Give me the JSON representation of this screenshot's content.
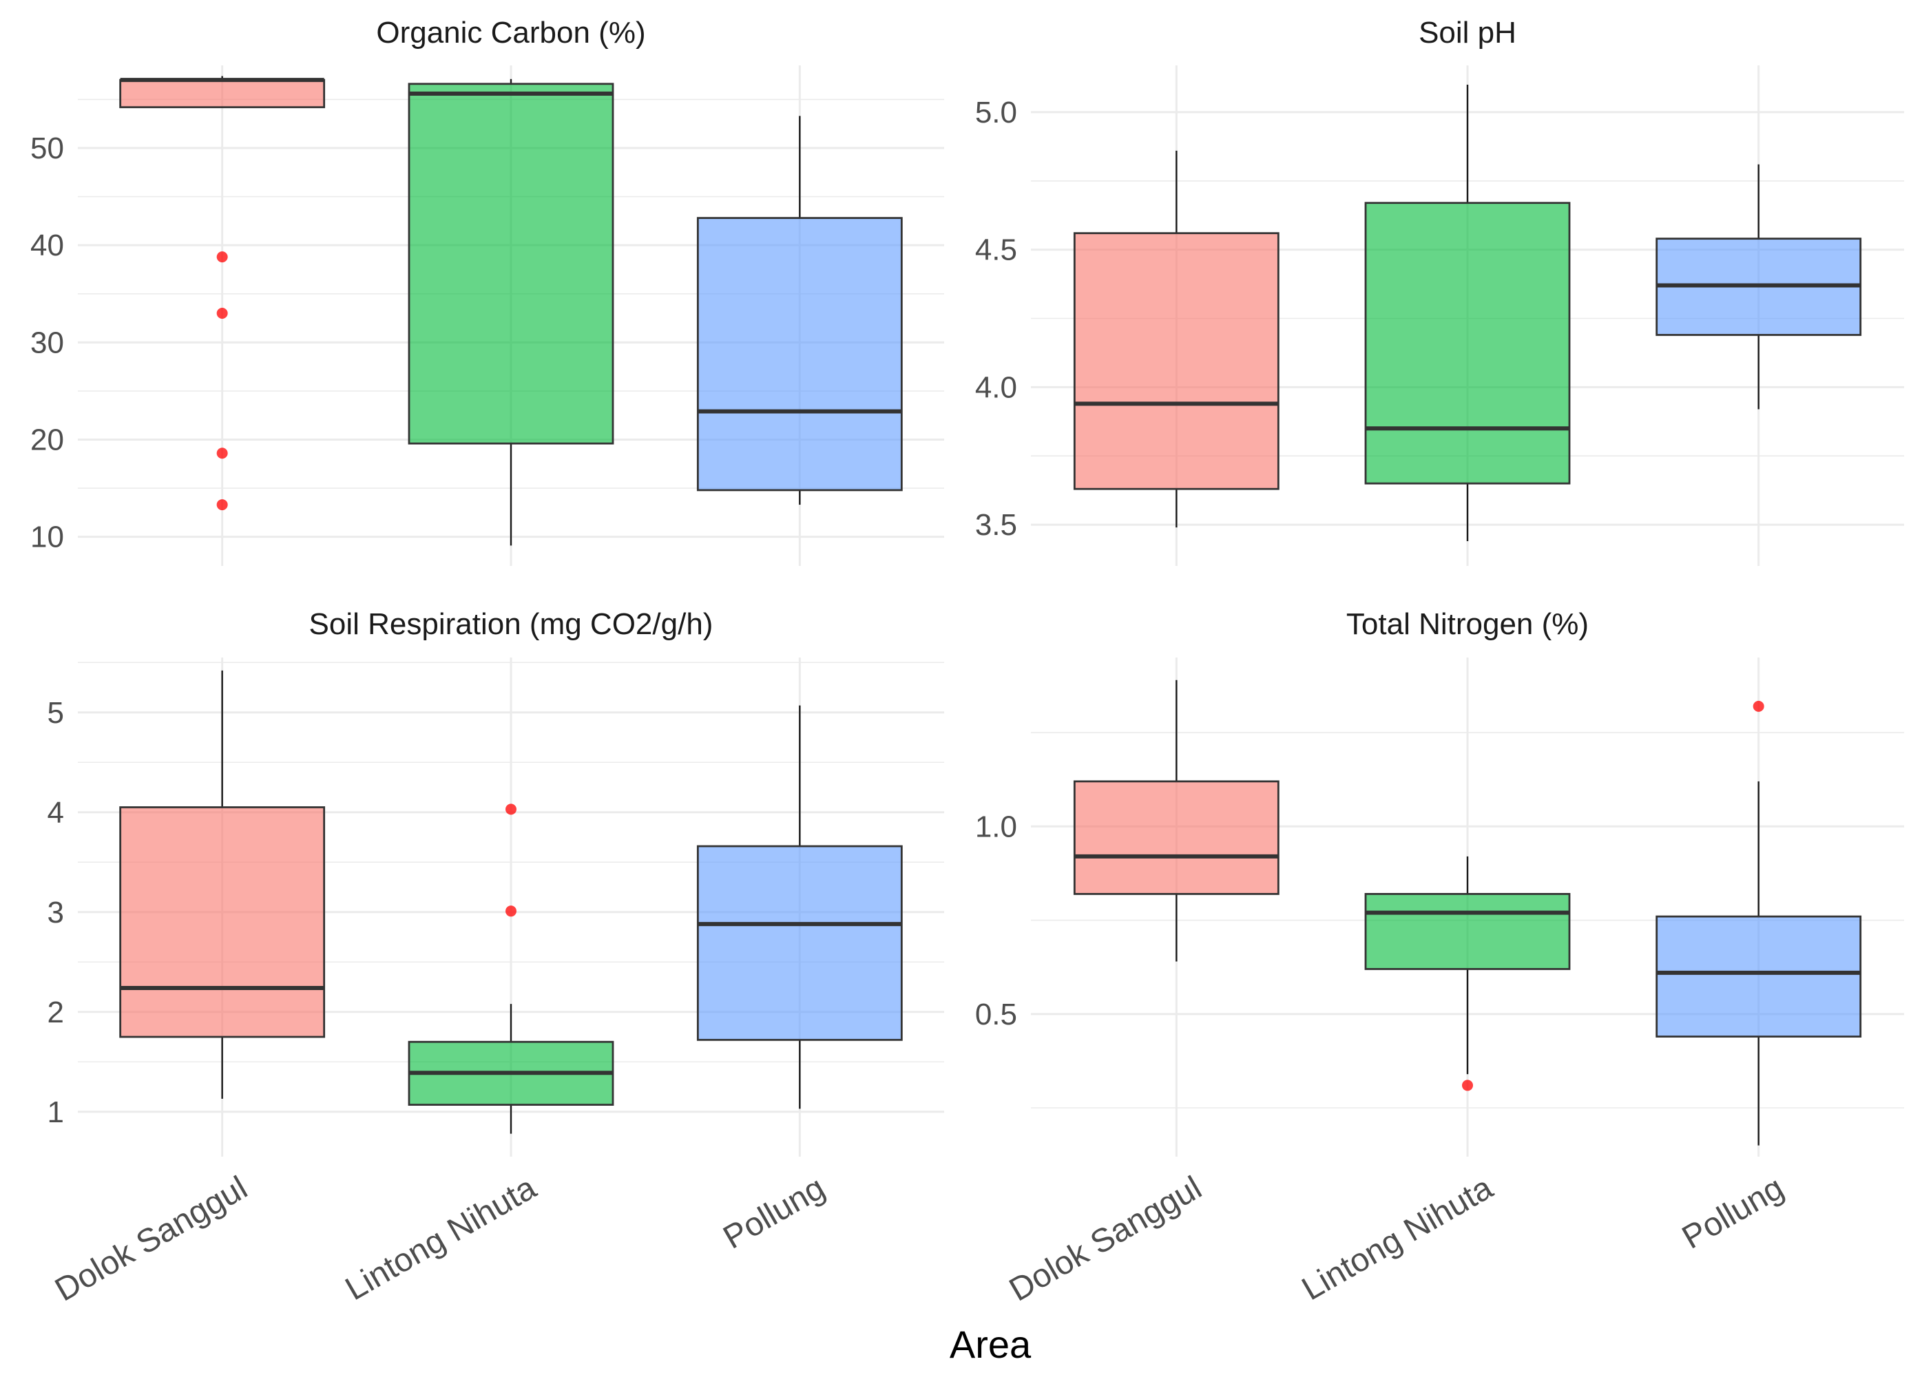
{
  "x_axis_title": "Area",
  "categories": [
    "Dolok Sanggul",
    "Lintong Nihuta",
    "Pollung"
  ],
  "colors": {
    "Dolok Sanggul": "#F8766D",
    "Lintong Nihuta": "#00BA38",
    "Pollung": "#619CFF",
    "outlier": "#FF0000"
  },
  "chart_data": [
    {
      "type": "box",
      "title": "Organic Carbon (%)",
      "ylim": [
        7,
        58.5
      ],
      "yticks": [
        10,
        20,
        30,
        40,
        50
      ],
      "ytick_labels": [
        "10",
        "20",
        "30",
        "40",
        "50"
      ],
      "yminor": [
        15,
        25,
        35,
        45,
        55
      ],
      "show_x_labels": false,
      "boxes": [
        {
          "category": "Dolok Sanggul",
          "whisker_low": 54.2,
          "q1": 54.2,
          "median": 57.0,
          "q3": 57.0,
          "whisker_high": 57.4,
          "outliers": [
            38.8,
            33.0,
            18.6,
            13.3
          ]
        },
        {
          "category": "Lintong Nihuta",
          "whisker_low": 9.1,
          "q1": 19.6,
          "median": 55.6,
          "q3": 56.6,
          "whisker_high": 57.1,
          "outliers": []
        },
        {
          "category": "Pollung",
          "whisker_low": 13.3,
          "q1": 14.8,
          "median": 22.9,
          "q3": 42.8,
          "whisker_high": 53.3,
          "outliers": []
        }
      ]
    },
    {
      "type": "box",
      "title": "Soil pH",
      "ylim": [
        3.35,
        5.17
      ],
      "yticks": [
        3.5,
        4.0,
        4.5,
        5.0
      ],
      "ytick_labels": [
        "3.5",
        "4.0",
        "4.5",
        "5.0"
      ],
      "yminor": [
        3.75,
        4.25,
        4.75
      ],
      "show_x_labels": false,
      "boxes": [
        {
          "category": "Dolok Sanggul",
          "whisker_low": 3.49,
          "q1": 3.63,
          "median": 3.94,
          "q3": 4.56,
          "whisker_high": 4.86,
          "outliers": []
        },
        {
          "category": "Lintong Nihuta",
          "whisker_low": 3.44,
          "q1": 3.65,
          "median": 3.85,
          "q3": 4.67,
          "whisker_high": 5.1,
          "outliers": []
        },
        {
          "category": "Pollung",
          "whisker_low": 3.92,
          "q1": 4.19,
          "median": 4.37,
          "q3": 4.54,
          "whisker_high": 4.81,
          "outliers": []
        }
      ]
    },
    {
      "type": "box",
      "title": "Soil Respiration (mg CO2/g/h)",
      "ylim": [
        0.55,
        5.55
      ],
      "yticks": [
        1,
        2,
        3,
        4,
        5
      ],
      "ytick_labels": [
        "1",
        "2",
        "3",
        "4",
        "5"
      ],
      "yminor": [
        1.5,
        2.5,
        3.5,
        4.5,
        5.5
      ],
      "show_x_labels": true,
      "boxes": [
        {
          "category": "Dolok Sanggul",
          "whisker_low": 1.13,
          "q1": 1.75,
          "median": 2.24,
          "q3": 4.05,
          "whisker_high": 5.42,
          "outliers": []
        },
        {
          "category": "Lintong Nihuta",
          "whisker_low": 0.78,
          "q1": 1.07,
          "median": 1.39,
          "q3": 1.7,
          "whisker_high": 2.08,
          "outliers": [
            4.03,
            3.01
          ]
        },
        {
          "category": "Pollung",
          "whisker_low": 1.03,
          "q1": 1.72,
          "median": 2.88,
          "q3": 3.66,
          "whisker_high": 5.07,
          "outliers": []
        }
      ]
    },
    {
      "type": "box",
      "title": "Total Nitrogen (%)",
      "ylim": [
        0.12,
        1.45
      ],
      "yticks": [
        0.5,
        1.0
      ],
      "ytick_labels": [
        "0.5",
        "1.0"
      ],
      "yminor": [
        0.25,
        0.75,
        1.25
      ],
      "show_x_labels": true,
      "boxes": [
        {
          "category": "Dolok Sanggul",
          "whisker_low": 0.64,
          "q1": 0.82,
          "median": 0.92,
          "q3": 1.12,
          "whisker_high": 1.39,
          "outliers": []
        },
        {
          "category": "Lintong Nihuta",
          "whisker_low": 0.34,
          "q1": 0.62,
          "median": 0.77,
          "q3": 0.82,
          "whisker_high": 0.92,
          "outliers": [
            0.31
          ]
        },
        {
          "category": "Pollung",
          "whisker_low": 0.15,
          "q1": 0.44,
          "median": 0.61,
          "q3": 0.76,
          "whisker_high": 1.12,
          "outliers": [
            1.32
          ]
        }
      ]
    }
  ]
}
